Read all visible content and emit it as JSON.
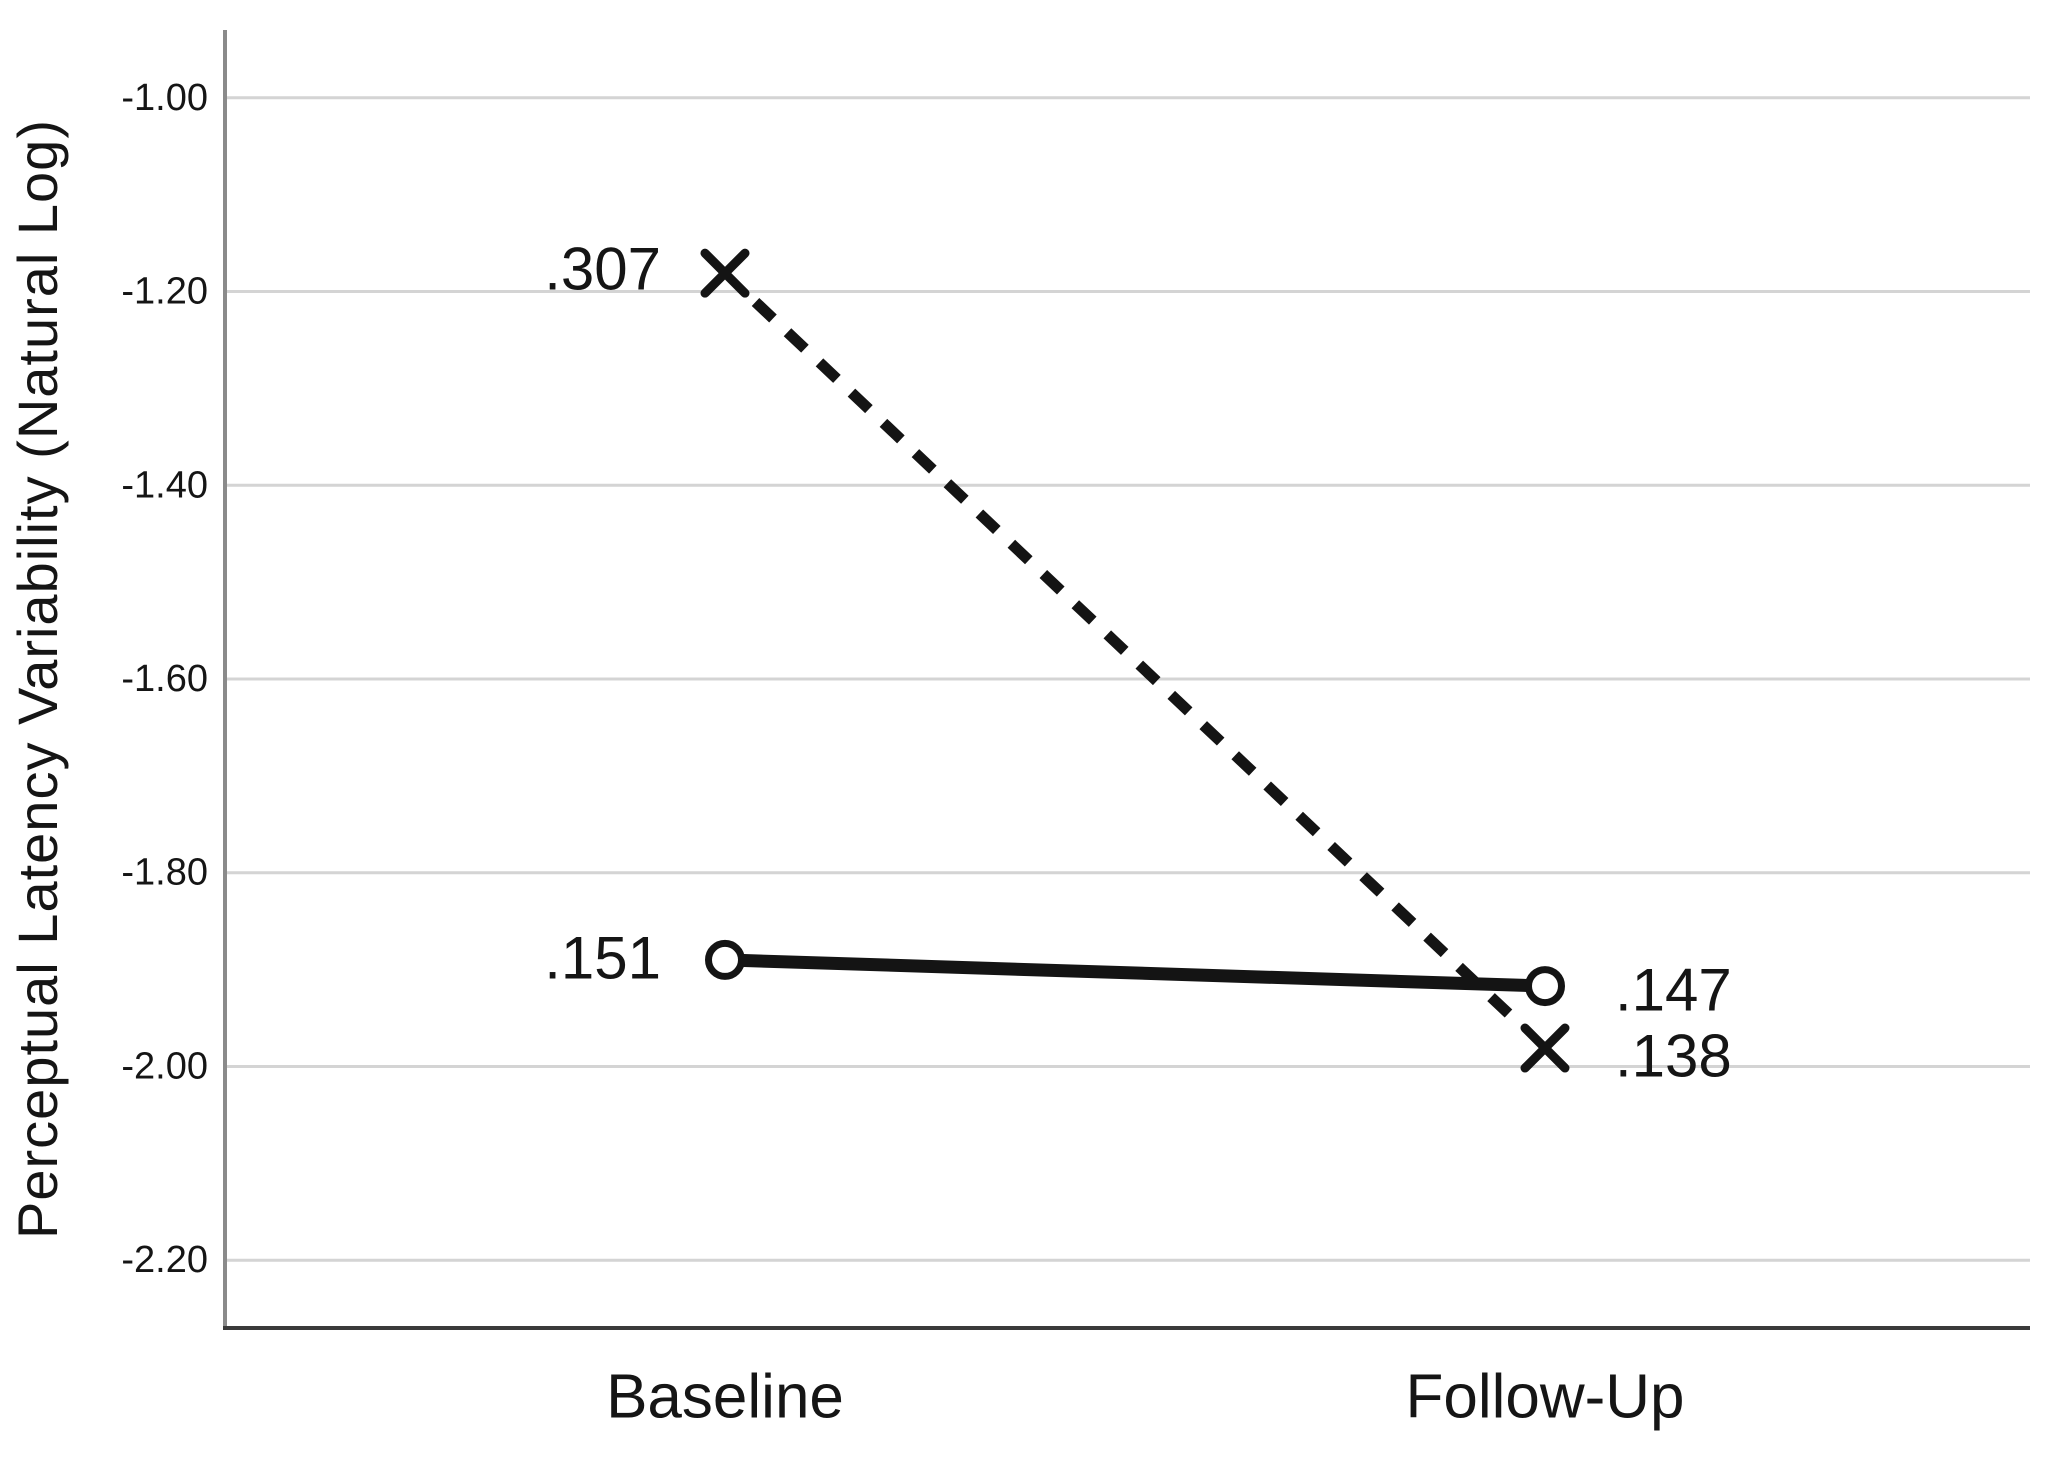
{
  "chart_data": {
    "type": "line",
    "title": "",
    "categories": [
      "Baseline",
      "Follow-Up"
    ],
    "series": [
      {
        "name": "x-marker-dashed-series",
        "marker": "x",
        "line_style": "dashed",
        "values": [
          -1.181,
          -1.981
        ],
        "point_labels": [
          ".307",
          ".138"
        ]
      },
      {
        "name": "circle-marker-solid-series",
        "marker": "circle",
        "line_style": "solid",
        "values": [
          -1.89,
          -1.917
        ],
        "point_labels": [
          ".151",
          ".147"
        ]
      }
    ],
    "xlabel": "",
    "ylabel": "Perceptual Latency Variability (Natural Log)",
    "y_ticks": {
      "values": [
        -1.0,
        -1.2,
        -1.4,
        -1.6,
        -1.8,
        -2.0,
        -2.2
      ],
      "labels": [
        "-1.00",
        "-1.20",
        "-1.40",
        "-1.60",
        "-1.80",
        "-2.00",
        "-2.20"
      ]
    },
    "ylim": [
      -2.27,
      -0.93
    ],
    "grid": "horizontal",
    "legend": "none",
    "colors": {
      "series": "#141414",
      "marker_fill": "#ffffff",
      "grid": "#d4d4d4",
      "y_axis": "#8a8a8a",
      "x_axis": "#3a3a3a",
      "text": "#151515",
      "background": "#ffffff"
    }
  }
}
